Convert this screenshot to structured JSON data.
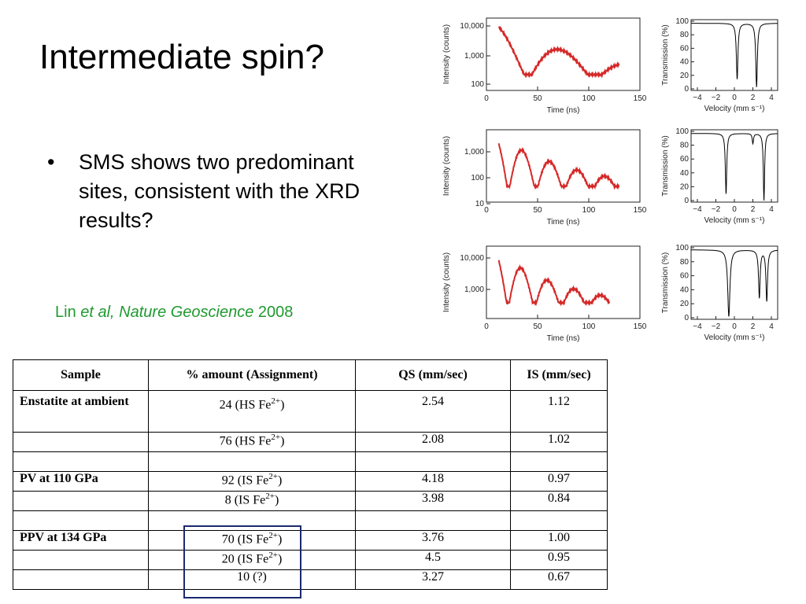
{
  "slide": {
    "title": "Intermediate spin?",
    "bullets": [
      "SMS shows two predominant sites, consistent with the XRD results?"
    ],
    "citation": {
      "prefix": "Lin ",
      "italic": "et al, Nature Geoscience",
      "suffix": " 2008"
    }
  },
  "figure": {
    "sms_panels": {
      "xlabel": "Time (ns)",
      "ylabel": "Intensity (counts)",
      "x_ticks": [
        "0",
        "50",
        "100",
        "150"
      ],
      "y_ticks": [
        [
          "10,000",
          "1,000",
          "100"
        ],
        [
          "1,000",
          "100",
          "10"
        ],
        [
          "10,000",
          "1,000"
        ]
      ]
    },
    "mossbauer_panels": {
      "xlabel": "Velocity (mm s⁻¹)",
      "ylabel": "Transmission (%)",
      "x_ticks": [
        "−4",
        "−2",
        "0",
        "2",
        "4"
      ],
      "y_ticks": [
        "100",
        "80",
        "60",
        "40",
        "20",
        "0"
      ]
    },
    "colors": {
      "data_red": "#d62828",
      "fit_black": "#000000"
    }
  },
  "table": {
    "headers": [
      "Sample",
      "% amount (Assignment)",
      "QS (mm/sec)",
      "IS (mm/sec)"
    ],
    "rows": [
      {
        "sample": "Enstatite at ambient",
        "amount": "24 (HS Fe2+)",
        "qs": "2.54",
        "is": "1.12"
      },
      {
        "sample": "",
        "amount": "76 (HS Fe2+)",
        "qs": "2.08",
        "is": "1.02"
      },
      {
        "sample": "",
        "amount": "",
        "qs": "",
        "is": ""
      },
      {
        "sample": "PV at 110 GPa",
        "amount": "92 (IS Fe2+)",
        "qs": "4.18",
        "is": "0.97"
      },
      {
        "sample": "",
        "amount": "8 (IS Fe2+)",
        "qs": "3.98",
        "is": "0.84"
      },
      {
        "sample": "",
        "amount": "",
        "qs": "",
        "is": ""
      },
      {
        "sample": "PPV at 134 GPa",
        "amount": "70 (IS Fe2+)",
        "qs": "3.76",
        "is": "1.00"
      },
      {
        "sample": "",
        "amount": "20 (IS Fe2+)",
        "qs": "4.5",
        "is": "0.95"
      },
      {
        "sample": "",
        "amount": "10 (?)",
        "qs": "3.27",
        "is": "0.67"
      }
    ]
  }
}
